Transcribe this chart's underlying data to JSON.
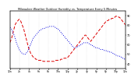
{
  "title": "Milwaukee Weather Outdoor Humidity vs. Temperature Every 5 Minutes",
  "background_color": "#ffffff",
  "grid_color": "#c8c8c8",
  "blue_color": "#0000dd",
  "red_color": "#dd0000",
  "n_points": 144,
  "humidity": [
    78,
    77,
    76,
    74,
    72,
    70,
    68,
    65,
    62,
    60,
    58,
    56,
    54,
    53,
    52,
    51,
    51,
    50,
    50,
    50,
    51,
    52,
    53,
    55,
    57,
    59,
    61,
    63,
    65,
    67,
    68,
    69,
    70,
    71,
    72,
    73,
    74,
    75,
    75,
    76,
    76,
    77,
    77,
    77,
    78,
    78,
    78,
    78,
    79,
    79,
    79,
    79,
    79,
    79,
    79,
    79,
    78,
    78,
    77,
    76,
    76,
    75,
    74,
    73,
    72,
    71,
    70,
    69,
    68,
    67,
    66,
    65,
    64,
    63,
    62,
    61,
    60,
    59,
    58,
    57,
    57,
    57,
    57,
    57,
    58,
    58,
    59,
    59,
    60,
    61,
    61,
    62,
    62,
    62,
    62,
    62,
    62,
    62,
    61,
    61,
    60,
    60,
    59,
    59,
    58,
    58,
    57,
    57,
    57,
    56,
    56,
    56,
    55,
    55,
    55,
    55,
    54,
    54,
    54,
    54,
    53,
    53,
    53,
    53,
    52,
    52,
    52,
    51,
    51,
    50,
    50,
    49,
    49,
    49,
    48,
    48,
    48,
    47,
    47,
    47,
    46,
    46,
    45,
    45
  ],
  "temperature": [
    55,
    57,
    59,
    62,
    65,
    68,
    71,
    73,
    74,
    75,
    76,
    77,
    77,
    76,
    74,
    72,
    70,
    68,
    65,
    62,
    59,
    56,
    53,
    50,
    48,
    46,
    44,
    43,
    42,
    41,
    40,
    40,
    39,
    39,
    38,
    38,
    38,
    38,
    38,
    38,
    38,
    37,
    37,
    37,
    37,
    37,
    37,
    37,
    37,
    37,
    37,
    37,
    37,
    37,
    37,
    37,
    38,
    38,
    38,
    38,
    38,
    38,
    38,
    39,
    39,
    39,
    39,
    40,
    40,
    40,
    40,
    41,
    41,
    42,
    43,
    44,
    45,
    46,
    47,
    48,
    49,
    50,
    51,
    52,
    53,
    54,
    55,
    56,
    57,
    58,
    59,
    60,
    61,
    62,
    62,
    61,
    60,
    59,
    58,
    57,
    56,
    57,
    58,
    59,
    60,
    61,
    62,
    63,
    64,
    65,
    66,
    67,
    68,
    69,
    70,
    71,
    72,
    73,
    74,
    75,
    75,
    76,
    76,
    77,
    77,
    77,
    78,
    78,
    78,
    79,
    79,
    80,
    80,
    80,
    80,
    79,
    79,
    78,
    77,
    76,
    75,
    74,
    73,
    72
  ],
  "ylim_temp": [
    30,
    85
  ],
  "ylim_hum": [
    35,
    95
  ],
  "right_yticks": [
    40,
    50,
    60,
    70,
    80,
    90
  ],
  "right_yticklabels": [
    "40",
    "50",
    "60",
    "70",
    "80",
    "90"
  ],
  "x_tick_labels": [
    "12a",
    "2a",
    "4a",
    "6a",
    "8a",
    "10a",
    "12p",
    "2p",
    "4p",
    "6p",
    "8p",
    "10p",
    "12a"
  ]
}
